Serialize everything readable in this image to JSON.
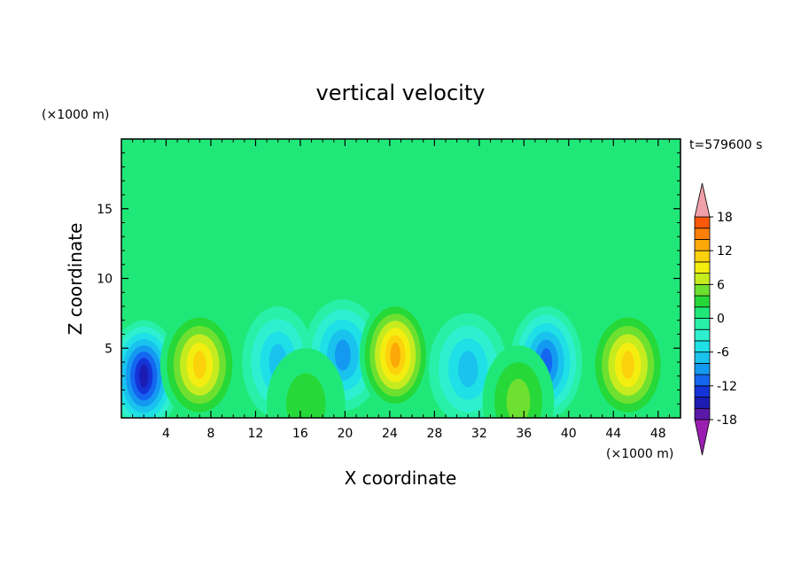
{
  "chart_data": {
    "type": "heatmap",
    "title": "vertical velocity",
    "xlabel": "X coordinate",
    "ylabel": "Z coordinate",
    "x_unit": "(×1000 m)",
    "y_unit": "(×1000 m)",
    "time_label": "t=579600 s",
    "xlim": [
      0,
      50
    ],
    "ylim": [
      0,
      20
    ],
    "x_ticks": [
      4,
      8,
      12,
      16,
      20,
      24,
      28,
      32,
      36,
      40,
      44,
      48
    ],
    "y_ticks": [
      5,
      10,
      15
    ],
    "colorbar": {
      "levels": [
        -20,
        -18,
        -16,
        -14,
        -12,
        -10,
        -8,
        -6,
        -4,
        -2,
        0,
        2,
        4,
        6,
        8,
        10,
        12,
        14,
        16,
        18,
        20
      ],
      "tick_labels": [
        "18",
        "12",
        "6",
        "0",
        "-6",
        "-12",
        "-18"
      ],
      "tick_values": [
        18,
        12,
        6,
        0,
        -6,
        -12,
        -18
      ],
      "colors": [
        "#9a1fb0",
        "#5a18a8",
        "#1c1cb4",
        "#1434d8",
        "#1466f0",
        "#1499f0",
        "#19c3ee",
        "#1ee0e6",
        "#2ef0d0",
        "#28f0a8",
        "#20e878",
        "#26d838",
        "#6ee030",
        "#c6ec20",
        "#f4ee10",
        "#fcd20c",
        "#fca808",
        "#fc8008",
        "#fa5808",
        "#f42a0a",
        "#f0a0a8"
      ]
    },
    "cells": [
      {
        "x": 2,
        "z": 3,
        "w": -14
      },
      {
        "x": 7,
        "z": 3.8,
        "w": 10
      },
      {
        "x": 14,
        "z": 4,
        "w": -7
      },
      {
        "x": 19.8,
        "z": 4.5,
        "w": -9
      },
      {
        "x": 24.5,
        "z": 4.5,
        "w": 13
      },
      {
        "x": 31,
        "z": 3.5,
        "w": -7
      },
      {
        "x": 38,
        "z": 4,
        "w": -11
      },
      {
        "x": 45.3,
        "z": 3.8,
        "w": 10
      },
      {
        "x": 35.5,
        "z": 1.2,
        "w": 4
      },
      {
        "x": 16.5,
        "z": 1.0,
        "w": 2
      }
    ]
  }
}
